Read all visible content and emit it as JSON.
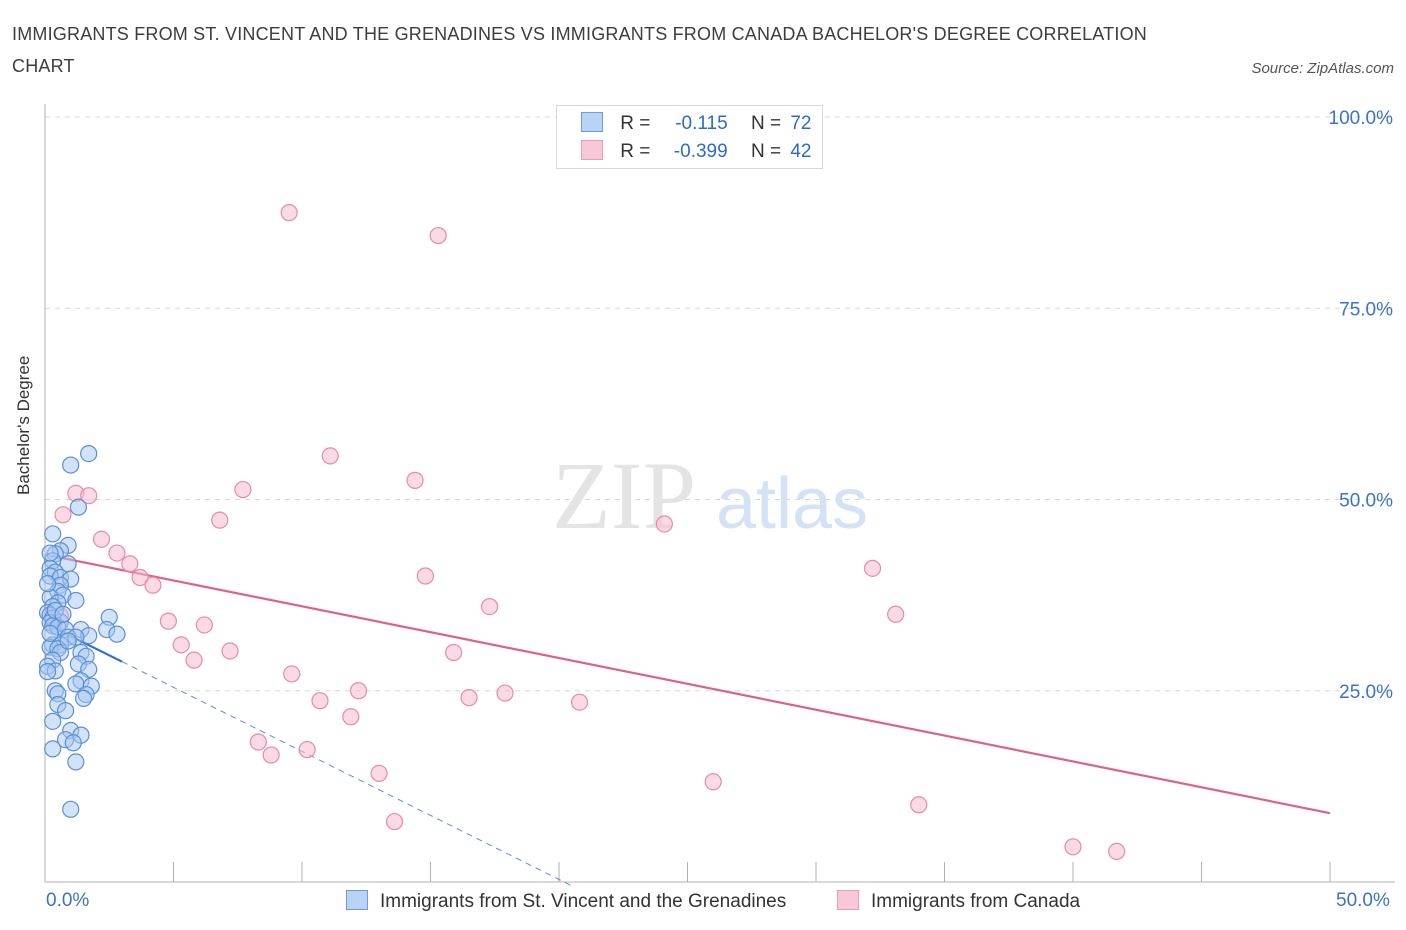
{
  "title": "IMMIGRANTS FROM ST. VINCENT AND THE GRENADINES VS IMMIGRANTS FROM CANADA BACHELOR'S DEGREE CORRELATION CHART",
  "source": "Source: ZipAtlas.com",
  "watermark_zip": "ZIP",
  "watermark_atlas": "atlas",
  "legend": {
    "series1": {
      "r_label": "R =",
      "r_value": "-0.115",
      "n_label": "N =",
      "n_value": "72"
    },
    "series2": {
      "r_label": "R =",
      "r_value": "-0.399",
      "n_label": "N =",
      "n_value": "42"
    }
  },
  "bottom_legend": {
    "series1": "Immigrants from St. Vincent and the Grenadines",
    "series2": "Immigrants from Canada"
  },
  "x_tick_labels": {
    "left": "0.0%",
    "right": "50.0%"
  },
  "colors": {
    "blue_fill": "#a8c8f0",
    "blue_stroke": "#5a8fd8",
    "blue_line": "#2f6fcf",
    "pink_fill": "#f5bcd0",
    "pink_stroke": "#e98aa8",
    "pink_line": "#e0608c",
    "axis_label": "#3a74c8",
    "grid": "#d8d8d8"
  },
  "chart_data": {
    "type": "scatter",
    "title": "IMMIGRANTS FROM ST. VINCENT AND THE GRENADINES VS IMMIGRANTS FROM CANADA BACHELOR'S DEGREE CORRELATION CHART",
    "xlabel": "",
    "ylabel": "Bachelor's Degree",
    "xlim": [
      0,
      50
    ],
    "ylim": [
      0,
      100
    ],
    "y_ticks": [
      25,
      50,
      75,
      100
    ],
    "y_tick_labels": [
      "25.0%",
      "50.0%",
      "75.0%",
      "100.0%"
    ],
    "series": [
      {
        "name": "Immigrants from St. Vincent and the Grenadines",
        "r": -0.115,
        "n": 72,
        "trend_solid": [
          [
            0,
            33.8
          ],
          [
            3.0,
            28.8
          ]
        ],
        "trend_dashed": [
          [
            3.0,
            28.8
          ],
          [
            20.5,
            -0.5
          ]
        ],
        "points": [
          [
            1.7,
            56.0
          ],
          [
            1.0,
            54.5
          ],
          [
            1.3,
            49.0
          ],
          [
            0.3,
            45.5
          ],
          [
            0.9,
            44.0
          ],
          [
            0.6,
            43.3
          ],
          [
            0.4,
            42.9
          ],
          [
            0.3,
            42.0
          ],
          [
            0.9,
            41.6
          ],
          [
            0.2,
            41.0
          ],
          [
            0.4,
            40.5
          ],
          [
            0.2,
            40.0
          ],
          [
            0.6,
            39.8
          ],
          [
            1.0,
            39.6
          ],
          [
            0.6,
            38.8
          ],
          [
            0.5,
            38.0
          ],
          [
            0.7,
            37.5
          ],
          [
            0.2,
            37.2
          ],
          [
            1.2,
            36.8
          ],
          [
            0.5,
            36.5
          ],
          [
            0.3,
            36.0
          ],
          [
            0.1,
            35.2
          ],
          [
            0.2,
            34.9
          ],
          [
            0.3,
            34.5
          ],
          [
            2.5,
            34.6
          ],
          [
            0.6,
            34.0
          ],
          [
            0.2,
            33.9
          ],
          [
            0.3,
            33.5
          ],
          [
            0.5,
            33.3
          ],
          [
            0.8,
            33.0
          ],
          [
            1.4,
            33.0
          ],
          [
            2.4,
            33.0
          ],
          [
            2.8,
            32.4
          ],
          [
            1.7,
            32.2
          ],
          [
            0.9,
            32.0
          ],
          [
            1.2,
            32.0
          ],
          [
            0.3,
            31.0
          ],
          [
            0.6,
            31.0
          ],
          [
            0.2,
            30.7
          ],
          [
            0.5,
            30.5
          ],
          [
            0.6,
            30.0
          ],
          [
            1.4,
            30.0
          ],
          [
            1.6,
            29.5
          ],
          [
            0.3,
            29.0
          ],
          [
            1.3,
            28.5
          ],
          [
            0.1,
            28.2
          ],
          [
            1.7,
            27.8
          ],
          [
            0.4,
            27.6
          ],
          [
            1.4,
            26.3
          ],
          [
            1.2,
            25.9
          ],
          [
            1.8,
            25.6
          ],
          [
            0.4,
            25.0
          ],
          [
            0.5,
            24.6
          ],
          [
            1.6,
            24.5
          ],
          [
            0.5,
            23.2
          ],
          [
            0.8,
            22.4
          ],
          [
            0.3,
            21.0
          ],
          [
            1.0,
            19.8
          ],
          [
            1.4,
            19.2
          ],
          [
            0.8,
            18.6
          ],
          [
            1.1,
            18.2
          ],
          [
            0.3,
            17.4
          ],
          [
            1.2,
            15.7
          ],
          [
            1.0,
            9.5
          ],
          [
            0.2,
            43.0
          ],
          [
            0.1,
            39.0
          ],
          [
            0.4,
            35.5
          ],
          [
            0.7,
            35.0
          ],
          [
            0.2,
            32.5
          ],
          [
            0.9,
            31.5
          ],
          [
            0.1,
            27.5
          ],
          [
            1.5,
            24.0
          ]
        ]
      },
      {
        "name": "Immigrants from Canada",
        "r": -0.399,
        "n": 42,
        "trend": [
          [
            0,
            42.8
          ],
          [
            50,
            9.0
          ]
        ],
        "points": [
          [
            9.5,
            87.5
          ],
          [
            15.3,
            84.5
          ],
          [
            11.1,
            55.7
          ],
          [
            14.4,
            52.5
          ],
          [
            7.7,
            51.3
          ],
          [
            1.2,
            50.8
          ],
          [
            1.7,
            50.5
          ],
          [
            0.7,
            48.0
          ],
          [
            6.8,
            47.3
          ],
          [
            24.1,
            46.8
          ],
          [
            2.2,
            44.8
          ],
          [
            2.8,
            43.0
          ],
          [
            3.3,
            41.6
          ],
          [
            32.2,
            41.0
          ],
          [
            14.8,
            40.0
          ],
          [
            3.7,
            39.8
          ],
          [
            4.2,
            38.8
          ],
          [
            17.3,
            36.0
          ],
          [
            33.1,
            35.0
          ],
          [
            0.6,
            34.8
          ],
          [
            4.8,
            34.1
          ],
          [
            6.2,
            33.6
          ],
          [
            5.3,
            31.0
          ],
          [
            7.2,
            30.2
          ],
          [
            15.9,
            30.0
          ],
          [
            5.8,
            29.0
          ],
          [
            9.6,
            27.2
          ],
          [
            12.2,
            25.0
          ],
          [
            17.9,
            24.7
          ],
          [
            16.5,
            24.1
          ],
          [
            10.7,
            23.7
          ],
          [
            20.8,
            23.5
          ],
          [
            11.9,
            21.6
          ],
          [
            8.3,
            18.3
          ],
          [
            10.2,
            17.3
          ],
          [
            8.8,
            16.6
          ],
          [
            13.0,
            14.2
          ],
          [
            26.0,
            13.1
          ],
          [
            34.0,
            10.1
          ],
          [
            13.6,
            7.9
          ],
          [
            40.0,
            4.6
          ],
          [
            41.7,
            4.0
          ]
        ]
      }
    ]
  }
}
